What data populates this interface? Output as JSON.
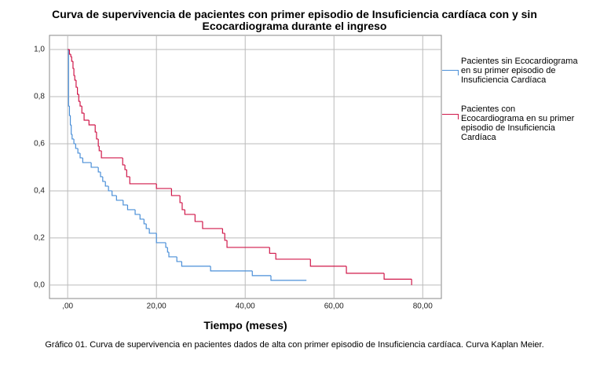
{
  "chart_data": {
    "type": "step",
    "title": "Curva de supervivencia de pacientes con primer episodio de Insuficiencia cardíaca con y sin Ecocardiograma durante el ingreso",
    "x_label": "Tiempo (meses)",
    "caption": "Gráfico 01. Curva de supervivencia en pacientes dados de alta con primer episodio de Insuficiencia cardíaca. Curva Kaplan Meier.",
    "xlim": [
      -4.1,
      84.2
    ],
    "ylim": [
      -0.057,
      1.06
    ],
    "xticks": [
      {
        "value": 0,
        "label": ",00"
      },
      {
        "value": 20,
        "label": "20,00"
      },
      {
        "value": 40,
        "label": "40,00"
      },
      {
        "value": 60,
        "label": "60,00"
      },
      {
        "value": 80,
        "label": "80,00"
      }
    ],
    "yticks": [
      {
        "value": 0,
        "label": "0,0"
      },
      {
        "value": 0.2,
        "label": "0,2"
      },
      {
        "value": 0.4,
        "label": "0,4"
      },
      {
        "value": 0.6,
        "label": "0,6"
      },
      {
        "value": 0.8,
        "label": "0,8"
      },
      {
        "value": 1,
        "label": "1,0"
      }
    ],
    "grid": true,
    "series": [
      {
        "name": "Pacientes sin Ecocardiograma en su primer episodio de Insuficiencia Cardíaca",
        "color": "#4a8fd8",
        "x": [
          0,
          0.2,
          0.4,
          0.6,
          0.8,
          1.0,
          1.4,
          1.8,
          2.3,
          2.8,
          3.4,
          5.3,
          6.9,
          7.4,
          7.9,
          8.5,
          9.2,
          10,
          11,
          12.5,
          13.5,
          15.2,
          16.3,
          17.2,
          17.7,
          18.4,
          20,
          22.1,
          22.5,
          22.8,
          24.6,
          25.7,
          32.2,
          41.6,
          45.8,
          53.8
        ],
        "values": [
          1.0,
          0.76,
          0.72,
          0.68,
          0.64,
          0.62,
          0.6,
          0.58,
          0.56,
          0.54,
          0.52,
          0.5,
          0.48,
          0.46,
          0.44,
          0.42,
          0.4,
          0.38,
          0.36,
          0.34,
          0.32,
          0.3,
          0.28,
          0.26,
          0.24,
          0.22,
          0.18,
          0.16,
          0.14,
          0.12,
          0.1,
          0.08,
          0.06,
          0.04,
          0.02,
          0.02
        ]
      },
      {
        "name": "Pacientes con Ecocardiograma en su primer episodio de Insuficiencia Cardíaca",
        "color": "#d0184a",
        "x": [
          0,
          0.4,
          0.7,
          0.9,
          1.2,
          1.4,
          1.6,
          1.9,
          2.2,
          2.5,
          2.8,
          3.2,
          3.7,
          4.8,
          6.2,
          6.5,
          6.9,
          7.1,
          7.6,
          12.4,
          12.9,
          13.3,
          14,
          20,
          23.4,
          25.3,
          25.8,
          26.4,
          28.7,
          30.4,
          34.9,
          35.4,
          35.9,
          45.5,
          46.9,
          54.7,
          62.8,
          71.3,
          77.5
        ],
        "values": [
          1.0,
          0.98,
          0.97,
          0.95,
          0.92,
          0.89,
          0.87,
          0.84,
          0.81,
          0.78,
          0.76,
          0.73,
          0.7,
          0.68,
          0.65,
          0.62,
          0.59,
          0.57,
          0.54,
          0.51,
          0.49,
          0.46,
          0.43,
          0.41,
          0.38,
          0.35,
          0.32,
          0.3,
          0.27,
          0.24,
          0.22,
          0.19,
          0.16,
          0.135,
          0.11,
          0.08,
          0.05,
          0.025,
          0.0
        ]
      }
    ]
  }
}
